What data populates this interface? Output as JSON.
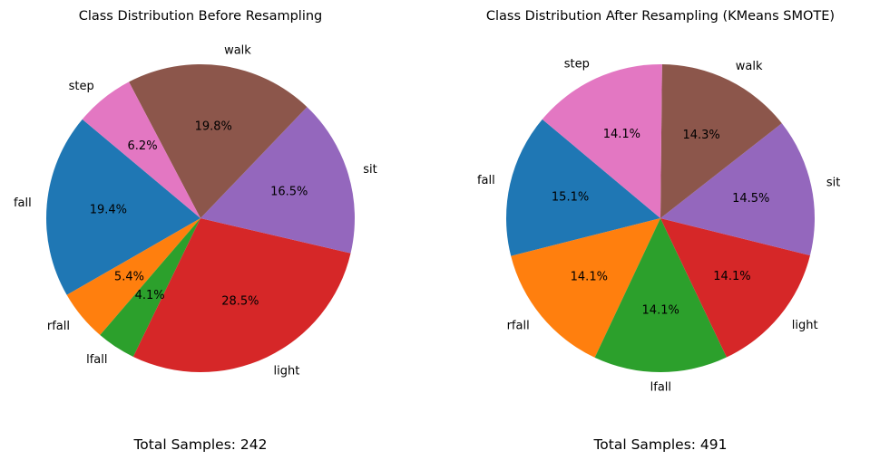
{
  "chart_data": [
    {
      "type": "pie",
      "title": "Class Distribution Before Resampling",
      "footer": "Total Samples: 242",
      "start_angle_deg": 140,
      "categories": [
        "fall",
        "rfall",
        "lfall",
        "light",
        "sit",
        "walk",
        "step"
      ],
      "values": [
        19.4,
        5.4,
        4.1,
        28.5,
        16.5,
        19.8,
        6.2
      ],
      "percent_labels": [
        "19.4%",
        "5.4%",
        "4.1%",
        "28.5%",
        "16.5%",
        "19.8%",
        "6.2%"
      ],
      "colors": [
        "#1f77b4",
        "#ff7f0e",
        "#2ca02c",
        "#d62728",
        "#9467bd",
        "#8c564b",
        "#e377c2"
      ]
    },
    {
      "type": "pie",
      "title": "Class Distribution After Resampling (KMeans SMOTE)",
      "footer": "Total Samples: 491",
      "start_angle_deg": 140,
      "categories": [
        "fall",
        "rfall",
        "lfall",
        "light",
        "sit",
        "walk",
        "step"
      ],
      "values": [
        15.1,
        14.1,
        14.1,
        14.1,
        14.5,
        14.3,
        14.1
      ],
      "percent_labels": [
        "15.1%",
        "14.1%",
        "14.1%",
        "14.1%",
        "14.5%",
        "14.3%",
        "14.1%"
      ],
      "colors": [
        "#1f77b4",
        "#ff7f0e",
        "#2ca02c",
        "#d62728",
        "#9467bd",
        "#8c564b",
        "#e377c2"
      ]
    }
  ]
}
